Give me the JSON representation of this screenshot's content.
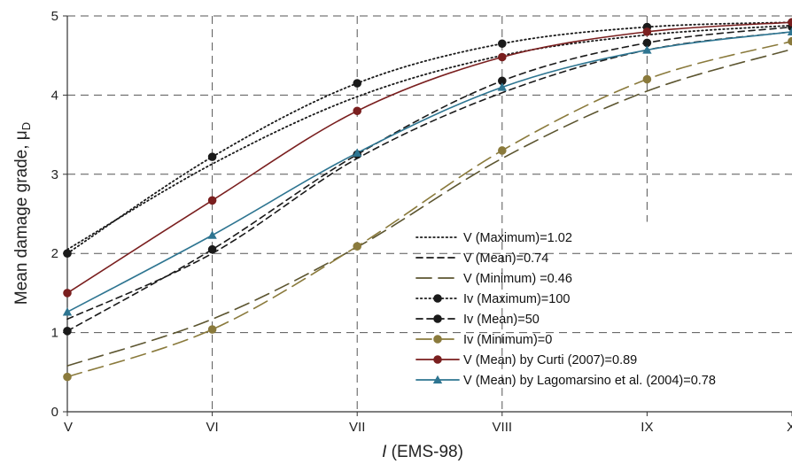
{
  "chart_data": {
    "type": "line",
    "xlabel": "I (EMS-98)",
    "xlabel_prefix": "I",
    "xlabel_suffix": " (EMS-98)",
    "ylabel": "Mean damage grade, μD",
    "ylabel_main": "Mean damage grade, μ",
    "ylabel_sub": "D",
    "categories": [
      "V",
      "VI",
      "VII",
      "VIII",
      "IX",
      "X"
    ],
    "ylim": [
      0,
      5
    ],
    "yticks": [
      "0",
      "1",
      "2",
      "3",
      "4",
      "5"
    ],
    "grid": true,
    "legend_position": "bottom-right",
    "series": [
      {
        "name": "V (Maximum)=1.02",
        "style": "dotted",
        "color": "#1a1a1a",
        "marker": "none",
        "show_markers": false,
        "values": [
          2.05,
          3.13,
          3.98,
          4.5,
          4.76,
          4.88
        ]
      },
      {
        "name": "V (Mean)=0.74",
        "style": "short-dash",
        "color": "#1a1a1a",
        "marker": "none",
        "show_markers": false,
        "values": [
          1.17,
          2.0,
          3.2,
          4.03,
          4.57,
          4.8
        ]
      },
      {
        "name": "V (Minimum) =0.46",
        "style": "long-dash",
        "color": "#5c5530",
        "marker": "none",
        "show_markers": false,
        "values": [
          0.58,
          1.17,
          2.08,
          3.2,
          4.05,
          4.58
        ]
      },
      {
        "name": "Iv (Maximum)=100",
        "style": "dotted",
        "color": "#1a1a1a",
        "marker": "circle",
        "show_markers": true,
        "values": [
          2.0,
          3.22,
          4.15,
          4.65,
          4.86,
          4.92
        ]
      },
      {
        "name": "Iv (Mean)=50",
        "style": "short-dash",
        "color": "#1a1a1a",
        "marker": "circle",
        "show_markers": true,
        "values": [
          1.02,
          2.05,
          3.25,
          4.18,
          4.66,
          4.86
        ]
      },
      {
        "name": "Iv (Minimum)=0",
        "style": "long-dash",
        "color": "#8a7a3c",
        "marker": "circle",
        "show_markers": true,
        "values": [
          0.44,
          1.04,
          2.09,
          3.3,
          4.2,
          4.68
        ]
      },
      {
        "name": "V (Mean) by Curti (2007)=0.89",
        "style": "solid",
        "color": "#7a1f1f",
        "marker": "circle",
        "show_markers": true,
        "values": [
          1.5,
          2.67,
          3.8,
          4.48,
          4.8,
          4.92
        ]
      },
      {
        "name": "V (Mean) by Lagomarsino et al. (2004)=0.78",
        "style": "solid",
        "color": "#2e7591",
        "marker": "triangle",
        "show_markers": true,
        "values": [
          1.26,
          2.23,
          3.27,
          4.1,
          4.57,
          4.8
        ]
      }
    ]
  }
}
